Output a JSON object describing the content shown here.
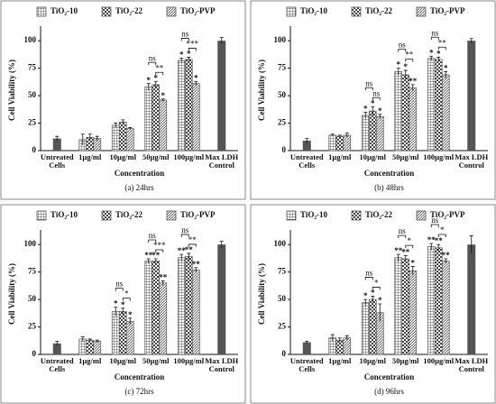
{
  "chart_data": [
    {
      "type": "bar",
      "caption": "(a) 24hrs",
      "x_label": "Concentration",
      "y_label": "Cell Viability (%)",
      "categories": [
        "Untreated Cells",
        "1µg/ml",
        "10µg/ml",
        "50µg/ml",
        "100µg/ml",
        "Max LDH Control"
      ],
      "ylim": [
        0,
        110
      ],
      "yticks": [
        0,
        25,
        50,
        75,
        100
      ],
      "control": {
        "color": "#555555",
        "values": [
          11,
          null,
          null,
          null,
          null,
          100
        ],
        "errors": [
          2,
          null,
          null,
          null,
          null,
          3
        ]
      },
      "series": [
        {
          "name": "TiO₂-10",
          "color": "#555555",
          "pattern": "grid",
          "values": [
            null,
            10,
            23,
            58,
            82,
            null
          ],
          "errors": [
            null,
            5,
            2,
            3,
            2,
            null
          ],
          "stars": [
            null,
            null,
            null,
            "*",
            "*",
            null
          ]
        },
        {
          "name": "TiO₂-22",
          "color": "#555555",
          "pattern": "checker",
          "values": [
            null,
            12,
            26,
            60,
            83,
            null
          ],
          "errors": [
            null,
            3,
            2,
            3,
            2,
            null
          ],
          "stars": [
            null,
            null,
            null,
            "*",
            "*",
            null
          ]
        },
        {
          "name": "TiO₂-PVP",
          "color": "#555555",
          "pattern": "diagonal",
          "values": [
            null,
            11,
            20,
            46,
            61,
            null
          ],
          "errors": [
            null,
            2,
            1,
            1,
            2,
            null
          ],
          "stars": [
            null,
            null,
            null,
            "*",
            "*",
            null
          ]
        }
      ],
      "brackets": [
        {
          "category": "50µg/ml",
          "from": "TiO₂-10",
          "to": "TiO₂-22",
          "label": "ns"
        },
        {
          "category": "50µg/ml",
          "from": "TiO₂-22",
          "to": "TiO₂-PVP",
          "label": "**"
        },
        {
          "category": "100µg/ml",
          "from": "TiO₂-10",
          "to": "TiO₂-22",
          "label": "ns"
        },
        {
          "category": "100µg/ml",
          "from": "TiO₂-22",
          "to": "TiO₂-PVP",
          "label": "***"
        }
      ]
    },
    {
      "type": "bar",
      "caption": "(b) 48hrs",
      "x_label": "Concentration",
      "y_label": "Cell Viability (%)",
      "categories": [
        "Untreated Cells",
        "1µg/ml",
        "10µg/ml",
        "50µg/ml",
        "100µg/ml",
        "Max LDH Control"
      ],
      "ylim": [
        0,
        110
      ],
      "yticks": [
        0,
        25,
        50,
        75,
        100
      ],
      "control": {
        "color": "#555555",
        "values": [
          9,
          null,
          null,
          null,
          null,
          100
        ],
        "errors": [
          2,
          null,
          null,
          null,
          null,
          2
        ]
      },
      "series": [
        {
          "name": "TiO₂-10",
          "color": "#555555",
          "pattern": "grid",
          "values": [
            null,
            14,
            32,
            72,
            84,
            null
          ],
          "errors": [
            null,
            1,
            3,
            3,
            2,
            null
          ],
          "stars": [
            null,
            null,
            "*",
            "*",
            "*",
            null
          ]
        },
        {
          "name": "TiO₂-22",
          "color": "#555555",
          "pattern": "checker",
          "values": [
            null,
            13,
            36,
            69,
            83,
            null
          ],
          "errors": [
            null,
            1,
            4,
            4,
            2,
            null
          ],
          "stars": [
            null,
            null,
            "*",
            "*",
            "*",
            null
          ]
        },
        {
          "name": "TiO₂-PVP",
          "color": "#555555",
          "pattern": "diagonal",
          "values": [
            null,
            14,
            31,
            57,
            69,
            null
          ],
          "errors": [
            null,
            2,
            2,
            3,
            3,
            null
          ],
          "stars": [
            null,
            null,
            "*",
            "**",
            "*",
            null
          ]
        }
      ],
      "brackets": [
        {
          "category": "10µg/ml",
          "from": "TiO₂-10",
          "to": "TiO₂-22",
          "label": "ns"
        },
        {
          "category": "10µg/ml",
          "from": "TiO₂-22",
          "to": "TiO₂-PVP",
          "label": "ns"
        },
        {
          "category": "50µg/ml",
          "from": "TiO₂-10",
          "to": "TiO₂-22",
          "label": "ns"
        },
        {
          "category": "50µg/ml",
          "from": "TiO₂-22",
          "to": "TiO₂-PVP",
          "label": "**"
        },
        {
          "category": "100µg/ml",
          "from": "TiO₂-10",
          "to": "TiO₂-22",
          "label": "ns"
        },
        {
          "category": "100µg/ml",
          "from": "TiO₂-22",
          "to": "TiO₂-PVP",
          "label": "**"
        }
      ]
    },
    {
      "type": "bar",
      "caption": "(c) 72hrs",
      "x_label": "Concentration",
      "y_label": "Cell Viability (%)",
      "categories": [
        "Untreated Cells",
        "1µg/ml",
        "10µg/ml",
        "50µg/ml",
        "100µg/ml",
        "Max LDH Control"
      ],
      "ylim": [
        0,
        110
      ],
      "yticks": [
        0,
        25,
        50,
        75,
        100
      ],
      "control": {
        "color": "#555555",
        "values": [
          10,
          null,
          null,
          null,
          null,
          100
        ],
        "errors": [
          2,
          null,
          null,
          null,
          null,
          3
        ]
      },
      "series": [
        {
          "name": "TiO₂-10",
          "color": "#555555",
          "pattern": "grid",
          "values": [
            null,
            14,
            39,
            85,
            88,
            null
          ],
          "errors": [
            null,
            2,
            4,
            2,
            3,
            null
          ],
          "stars": [
            null,
            null,
            "*",
            "**",
            "**",
            null
          ]
        },
        {
          "name": "TiO₂-22",
          "color": "#555555",
          "pattern": "checker",
          "values": [
            null,
            13,
            39,
            85,
            89,
            null
          ],
          "errors": [
            null,
            1,
            3,
            2,
            3,
            null
          ],
          "stars": [
            null,
            null,
            "*",
            "**",
            "**",
            null
          ]
        },
        {
          "name": "TiO₂-PVP",
          "color": "#555555",
          "pattern": "diagonal",
          "values": [
            null,
            12,
            30,
            65,
            77,
            null
          ],
          "errors": [
            null,
            1,
            3,
            2,
            2,
            null
          ],
          "stars": [
            null,
            null,
            "*",
            "**",
            "**",
            null
          ]
        }
      ],
      "brackets": [
        {
          "category": "10µg/ml",
          "from": "TiO₂-10",
          "to": "TiO₂-22",
          "label": "ns"
        },
        {
          "category": "10µg/ml",
          "from": "TiO₂-22",
          "to": "TiO₂-PVP",
          "label": "*"
        },
        {
          "category": "50µg/ml",
          "from": "TiO₂-10",
          "to": "TiO₂-22",
          "label": "ns"
        },
        {
          "category": "50µg/ml",
          "from": "TiO₂-22",
          "to": "TiO₂-PVP",
          "label": "***"
        },
        {
          "category": "100µg/ml",
          "from": "TiO₂-10",
          "to": "TiO₂-22",
          "label": "ns"
        },
        {
          "category": "100µg/ml",
          "from": "TiO₂-22",
          "to": "TiO₂-PVP",
          "label": "**"
        }
      ]
    },
    {
      "type": "bar",
      "caption": "(d) 96hrs",
      "x_label": "Concentration",
      "y_label": "Cell Viability (%)",
      "categories": [
        "Untreated Cells",
        "1µg/ml",
        "10µg/ml",
        "50µg/ml",
        "100µg/ml",
        "Max LDH Control"
      ],
      "ylim": [
        0,
        110
      ],
      "yticks": [
        0,
        25,
        50,
        75,
        100
      ],
      "control": {
        "color": "#555555",
        "values": [
          11,
          null,
          null,
          null,
          null,
          100
        ],
        "errors": [
          1,
          null,
          null,
          null,
          null,
          8
        ]
      },
      "series": [
        {
          "name": "TiO₂-10",
          "color": "#555555",
          "pattern": "grid",
          "values": [
            null,
            15,
            47,
            88,
            98,
            null
          ],
          "errors": [
            null,
            3,
            3,
            3,
            3,
            null
          ],
          "stars": [
            null,
            null,
            "*",
            "**",
            "**",
            null
          ]
        },
        {
          "name": "TiO₂-22",
          "color": "#555555",
          "pattern": "checker",
          "values": [
            null,
            13,
            50,
            87,
            97,
            null
          ],
          "errors": [
            null,
            2,
            3,
            3,
            3,
            null
          ],
          "stars": [
            null,
            null,
            "*",
            "**",
            "**",
            null
          ]
        },
        {
          "name": "TiO₂-PVP",
          "color": "#555555",
          "pattern": "diagonal",
          "values": [
            null,
            15,
            38,
            76,
            85,
            null
          ],
          "errors": [
            null,
            2,
            8,
            4,
            2,
            null
          ],
          "stars": [
            null,
            null,
            "*",
            "*",
            "**",
            null
          ]
        }
      ],
      "brackets": [
        {
          "category": "10µg/ml",
          "from": "TiO₂-10",
          "to": "TiO₂-22",
          "label": "ns"
        },
        {
          "category": "10µg/ml",
          "from": "TiO₂-22",
          "to": "TiO₂-PVP",
          "label": "*"
        },
        {
          "category": "50µg/ml",
          "from": "TiO₂-10",
          "to": "TiO₂-22",
          "label": "ns"
        },
        {
          "category": "50µg/ml",
          "from": "TiO₂-22",
          "to": "TiO₂-PVP",
          "label": "*"
        },
        {
          "category": "100µg/ml",
          "from": "TiO₂-10",
          "to": "TiO₂-22",
          "label": "ns"
        },
        {
          "category": "100µg/ml",
          "from": "TiO₂-22",
          "to": "TiO₂-PVP",
          "label": "*"
        }
      ]
    }
  ]
}
